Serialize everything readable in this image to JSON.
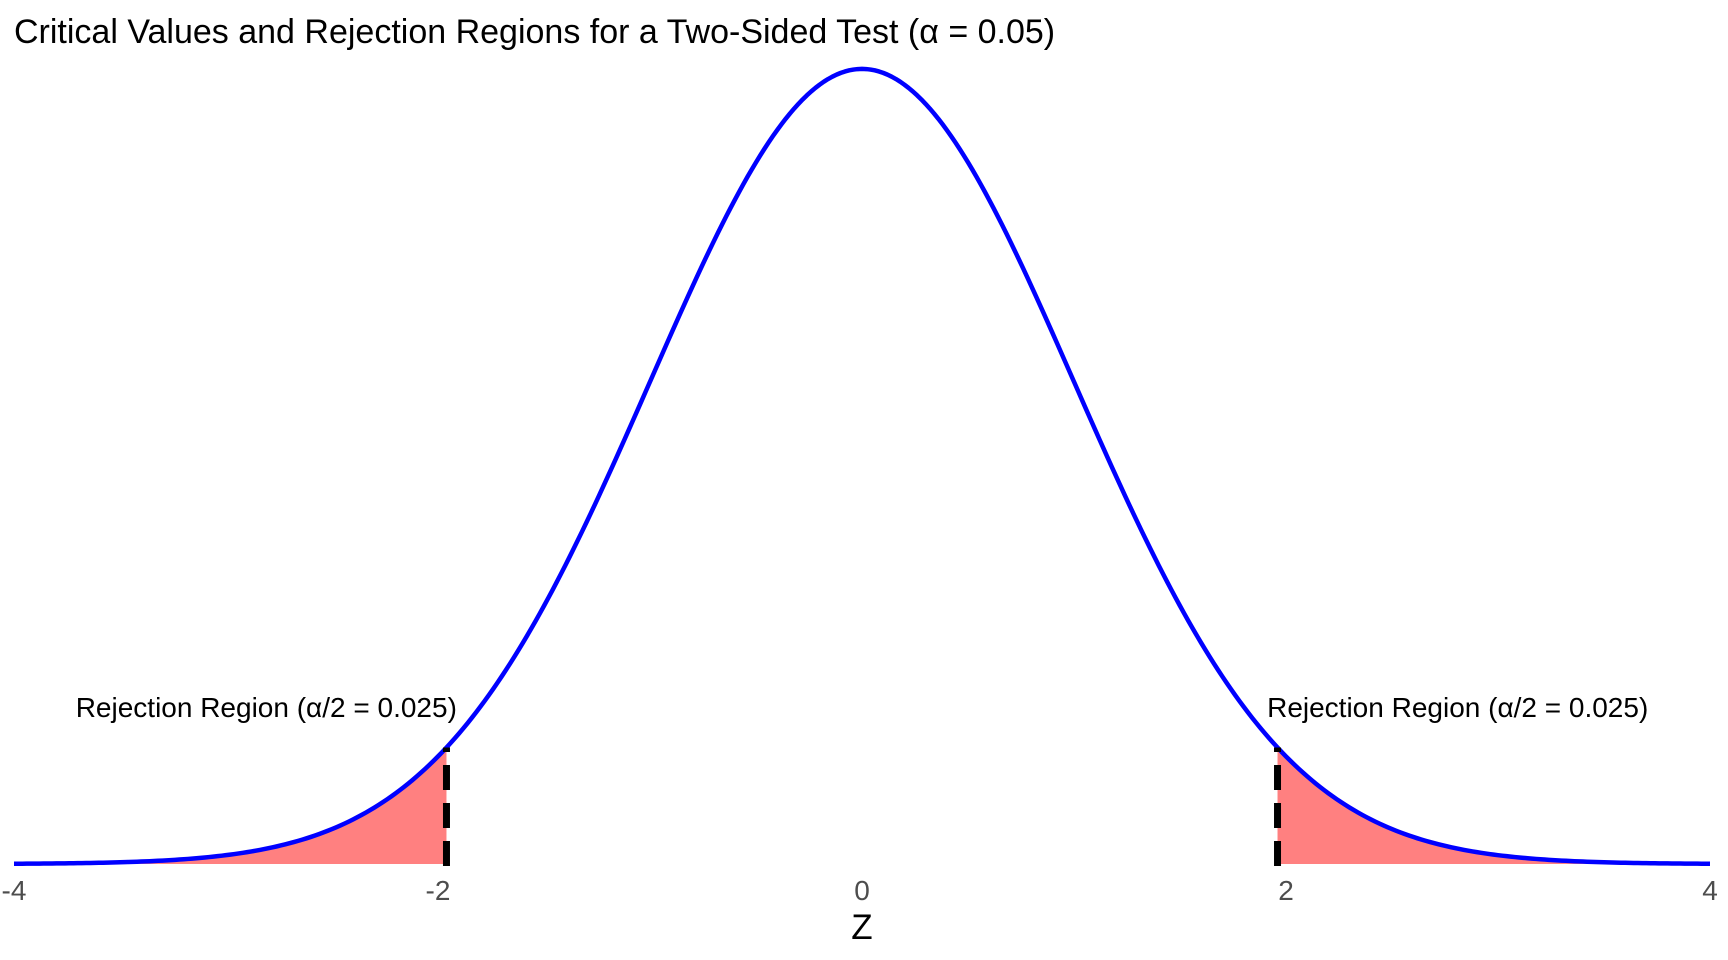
{
  "page": {
    "background": "#FFFFFF"
  },
  "chart_data": {
    "type": "area",
    "title": "Critical Values and Rejection Regions for a Two-Sided Test (α = 0.05)",
    "xlabel": "Z",
    "ylabel": "",
    "distribution": {
      "name": "standard-normal",
      "mean": 0,
      "sd": 1,
      "peak_density": 0.3989
    },
    "x_range": [
      -4,
      4
    ],
    "ylim": [
      0,
      0.41
    ],
    "grid": false,
    "legend": "none",
    "xticks": [
      "-4",
      "-2",
      "0",
      "2",
      "4"
    ],
    "xtick_values": [
      -4,
      -2,
      0,
      2,
      4
    ],
    "alpha": 0.05,
    "alpha_half": 0.025,
    "critical_values": [
      -1.96,
      1.96
    ],
    "rejection_labels": {
      "left": "Rejection Region (α/2 = 0.025)",
      "right": "Rejection Region (α/2 = 0.025)"
    },
    "annotation_centers_z": [
      -2.81,
      2.81
    ],
    "colors": {
      "curve": "#0000FF",
      "fill": "#FF8080",
      "critical_line": "#000000",
      "tick_text": "#4D4D4D",
      "title_text": "#000000"
    }
  }
}
